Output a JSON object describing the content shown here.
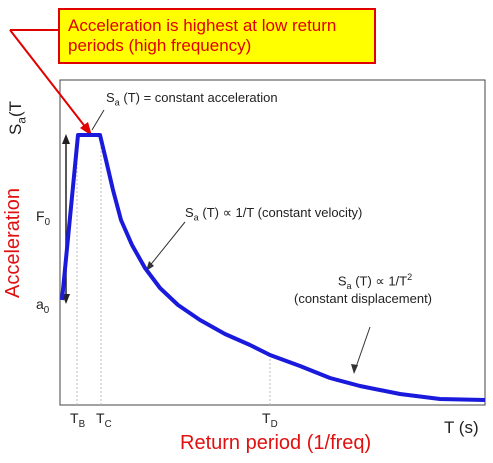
{
  "callout": {
    "line1": "Acceleration is highest at low return",
    "line2": "periods (high frequency)"
  },
  "axes": {
    "y_symbol": "S",
    "y_symbol_sub": "a",
    "y_symbol_paren": "(T",
    "y_side_label": "Acceleration",
    "x_symbol": "T (s)",
    "x_side_label": "Return period (1/freq)",
    "F0": "F",
    "F0_sub": "0",
    "a0": "a",
    "a0_sub": "0"
  },
  "ticks": {
    "TB": "T",
    "TB_sub": "B",
    "TC": "T",
    "TC_sub": "C",
    "TD": "T",
    "TD_sub": "D"
  },
  "annotations": {
    "plateau_pre": "S",
    "plateau_sub": "a",
    "plateau_post": "(T) = constant acceleration",
    "velocity_pre": "S",
    "velocity_sub": "a",
    "velocity_post": "(T) ∝ 1/T (constant velocity)",
    "disp_pre": "S",
    "disp_sub": "a",
    "disp_post": "(T) ∝ 1/T",
    "disp_sup": "2",
    "disp_line2": "(constant displacement)"
  },
  "colors": {
    "curve": "#1a1adc",
    "callout_fill": "#ffff00",
    "callout_text": "#e00000",
    "side_labels": "#e01010"
  }
}
